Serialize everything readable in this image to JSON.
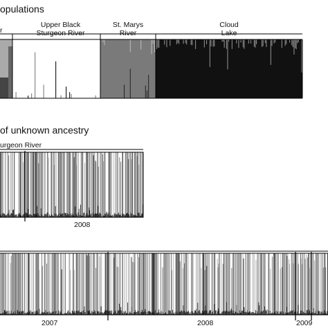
{
  "chart_data": [
    {
      "type": "bar",
      "title": "opulations",
      "groups": [
        {
          "label": "r",
          "color": "#aaaaaa"
        },
        {
          "label": "Upper Black\nSturgeon River",
          "color": "#ffffff"
        },
        {
          "label": "St. Marys\nRiver",
          "color": "#7a7a7a"
        },
        {
          "label": "Cloud\nLake",
          "color": "#111111"
        }
      ],
      "ylim": [
        0,
        1
      ],
      "grid": false
    },
    {
      "type": "bar",
      "title": "of unknown ancestry",
      "subtitle": "urgeon River",
      "year_labels": [
        "2008"
      ],
      "ylim": [
        0,
        1
      ],
      "grid": false
    },
    {
      "type": "bar",
      "year_labels": [
        "2007",
        "2008",
        "2009"
      ],
      "ylim": [
        0,
        1
      ],
      "grid": false
    }
  ]
}
